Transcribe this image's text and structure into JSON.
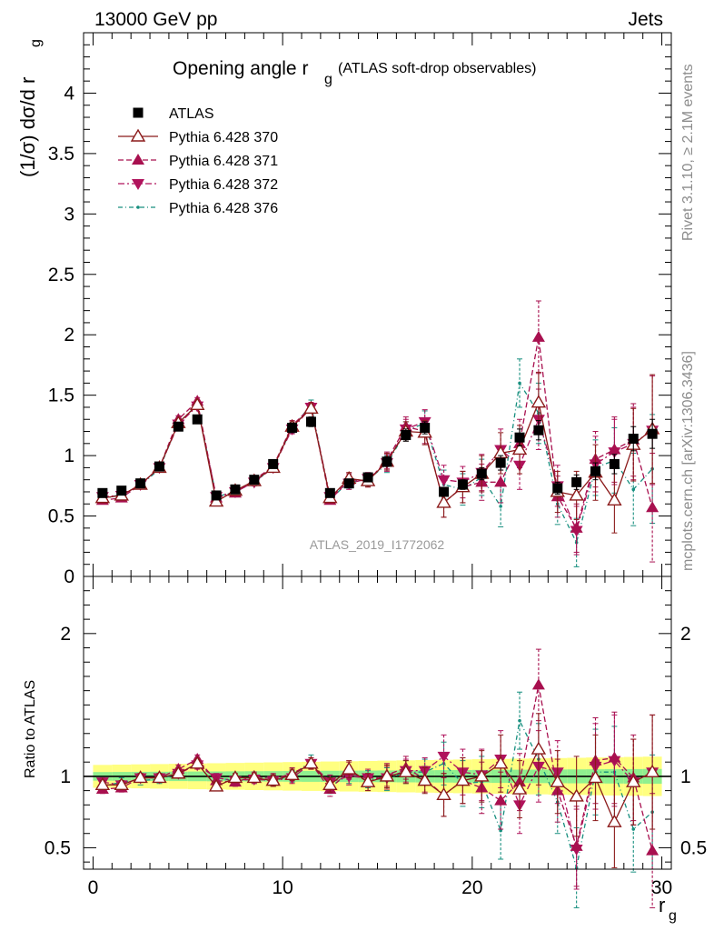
{
  "header": {
    "left": "13000 GeV pp",
    "right": "Jets"
  },
  "plot_title": {
    "main": "Opening angle r",
    "sub_g": "g",
    "paren": "(ATLAS soft-drop observables)"
  },
  "side_text": {
    "rivet": "Rivet 3.1.10, ≥ 2.1M events",
    "mcplots": "mcplots.cern.ch [arXiv:1306.3436]"
  },
  "watermark": "ATLAS_2019_I1772062",
  "upper_ylabel": "(1/σ) dσ/d r",
  "upper_ylabel_sub": "g",
  "lower_ylabel": "Ratio to ATLAS",
  "xlabel": "r",
  "xlabel_sub": "g",
  "colors": {
    "data": "#000000",
    "p370": "#8b1a1a",
    "p371": "#a8104f",
    "p372": "#b0135c",
    "p376": "#178f7f",
    "band_green": "#8ff08f",
    "band_yellow": "#ffff80"
  },
  "chart_data": [
    {
      "type": "line",
      "panel": "main",
      "xlim": [
        -0.5,
        30.5
      ],
      "ylim": [
        0,
        4.5
      ],
      "x_ticks": [
        0,
        10,
        20,
        30
      ],
      "y_ticks": [
        0,
        0.5,
        1,
        1.5,
        2,
        2.5,
        3,
        3.5,
        4
      ],
      "y_tick_labels": [
        "0",
        "0.5",
        "1",
        "1.5",
        "2",
        "2.5",
        "3",
        "3.5",
        "4"
      ],
      "x": [
        0.5,
        1.5,
        2.5,
        3.5,
        4.5,
        5.5,
        6.5,
        7.5,
        8.5,
        9.5,
        10.5,
        11.5,
        12.5,
        13.5,
        14.5,
        15.5,
        16.5,
        17.5,
        18.5,
        19.5,
        20.5,
        21.5,
        22.5,
        23.5,
        24.5,
        25.5,
        26.5,
        27.5,
        28.5,
        29.5
      ],
      "legend": [
        "ATLAS",
        "Pythia 6.428 370",
        "Pythia 6.428 371",
        "Pythia 6.428 372",
        "Pythia 6.428 376"
      ],
      "series": [
        {
          "name": "ATLAS",
          "style": "data",
          "values": [
            0.69,
            0.71,
            0.77,
            0.91,
            1.24,
            1.3,
            0.67,
            0.72,
            0.8,
            0.93,
            1.23,
            1.28,
            0.69,
            0.77,
            0.82,
            0.95,
            1.17,
            1.23,
            0.7,
            0.76,
            0.85,
            0.94,
            1.15,
            1.21,
            0.73,
            0.78,
            0.87,
            0.93,
            1.14,
            1.18
          ]
        },
        {
          "name": "Pythia 6.428 370",
          "style": "solid-open-up",
          "values": [
            0.65,
            0.67,
            0.76,
            0.9,
            1.27,
            1.42,
            0.62,
            0.71,
            0.79,
            0.9,
            1.24,
            1.39,
            0.65,
            0.81,
            0.79,
            0.95,
            1.2,
            1.19,
            0.61,
            0.74,
            0.85,
            1.02,
            1.05,
            1.44,
            0.7,
            0.67,
            0.86,
            0.63,
            1.09,
            1.22
          ]
        },
        {
          "name": "Pythia 6.428 371",
          "style": "dash-filled-up",
          "values": [
            0.63,
            0.65,
            0.76,
            0.9,
            1.3,
            1.45,
            0.65,
            0.69,
            0.8,
            0.91,
            1.25,
            1.4,
            0.63,
            0.8,
            0.79,
            0.96,
            1.24,
            1.2,
            0.61,
            0.74,
            0.78,
            0.78,
            1.1,
            1.98,
            0.66,
            0.4,
            0.97,
            1.05,
            1.13,
            0.57
          ]
        },
        {
          "name": "Pythia 6.428 372",
          "style": "dashdot-filled-down",
          "values": [
            0.66,
            0.67,
            0.76,
            0.9,
            1.26,
            1.41,
            0.66,
            0.7,
            0.78,
            0.9,
            1.22,
            1.4,
            0.66,
            0.77,
            0.81,
            0.94,
            1.22,
            1.28,
            0.8,
            0.78,
            0.86,
            1.05,
            0.92,
            1.3,
            0.75,
            0.38,
            0.93,
            1.03,
            1.1,
            1.21
          ]
        },
        {
          "name": "Pythia 6.428 376",
          "style": "dashdot-dots",
          "values": [
            0.64,
            0.68,
            0.75,
            0.89,
            1.27,
            1.42,
            0.66,
            0.7,
            0.78,
            0.9,
            1.23,
            1.42,
            0.64,
            0.78,
            0.8,
            0.93,
            1.2,
            1.27,
            0.76,
            0.72,
            0.82,
            0.58,
            1.6,
            1.35,
            0.6,
            0.28,
            0.9,
            0.96,
            0.72,
            0.89
          ]
        }
      ],
      "errors": [
        [
          0.02,
          0.02,
          0.02,
          0.03,
          0.03,
          0.03,
          0.02,
          0.02,
          0.03,
          0.03,
          0.04,
          0.04,
          0.02,
          0.03,
          0.03,
          0.04,
          0.05,
          0.05,
          0.03,
          0.04,
          0.05,
          0.06,
          0.07,
          0.08,
          0.05,
          0.06,
          0.07,
          0.08,
          0.1,
          0.12
        ],
        [
          0.02,
          0.02,
          0.02,
          0.02,
          0.03,
          0.03,
          0.02,
          0.02,
          0.03,
          0.03,
          0.04,
          0.04,
          0.03,
          0.05,
          0.05,
          0.07,
          0.08,
          0.1,
          0.12,
          0.13,
          0.15,
          0.17,
          0.2,
          0.25,
          0.17,
          0.2,
          0.23,
          0.27,
          0.3,
          0.45
        ],
        [
          0.02,
          0.02,
          0.02,
          0.02,
          0.03,
          0.03,
          0.02,
          0.02,
          0.03,
          0.03,
          0.04,
          0.04,
          0.03,
          0.05,
          0.05,
          0.07,
          0.08,
          0.1,
          0.12,
          0.13,
          0.15,
          0.17,
          0.2,
          0.3,
          0.17,
          0.2,
          0.23,
          0.27,
          0.3,
          0.45
        ],
        [
          0.02,
          0.02,
          0.02,
          0.02,
          0.03,
          0.03,
          0.02,
          0.02,
          0.03,
          0.03,
          0.04,
          0.04,
          0.03,
          0.05,
          0.05,
          0.07,
          0.08,
          0.1,
          0.12,
          0.13,
          0.15,
          0.17,
          0.2,
          0.25,
          0.17,
          0.2,
          0.23,
          0.27,
          0.3,
          0.45
        ],
        [
          0.02,
          0.02,
          0.02,
          0.02,
          0.03,
          0.03,
          0.02,
          0.02,
          0.03,
          0.03,
          0.04,
          0.04,
          0.03,
          0.05,
          0.05,
          0.07,
          0.08,
          0.1,
          0.12,
          0.13,
          0.15,
          0.17,
          0.2,
          0.25,
          0.17,
          0.2,
          0.23,
          0.27,
          0.3,
          0.45
        ]
      ]
    },
    {
      "type": "line",
      "panel": "ratio",
      "xlim": [
        -0.5,
        30.5
      ],
      "ylim": [
        0.35,
        2.4
      ],
      "x_ticks": [
        0,
        10,
        20,
        30
      ],
      "x_tick_labels": [
        "0",
        "10",
        "20",
        "30"
      ],
      "y_ticks": [
        0.5,
        1,
        2
      ],
      "y_tick_labels": [
        "0.5",
        "1",
        "2"
      ],
      "ylabel": "Ratio to ATLAS",
      "reference": 1,
      "band_inner": 0.03,
      "band_outer": 0.08,
      "series": [
        {
          "name": "Pythia 6.428 370",
          "values": [
            0.94,
            0.94,
            0.99,
            0.99,
            1.02,
            1.09,
            0.93,
            0.99,
            0.99,
            0.97,
            1.01,
            1.09,
            0.94,
            1.05,
            0.96,
            1.0,
            1.03,
            0.97,
            0.87,
            0.97,
            1.0,
            1.09,
            0.91,
            1.19,
            0.96,
            0.86,
            0.99,
            0.68,
            0.96,
            1.03
          ]
        },
        {
          "name": "Pythia 6.428 371",
          "values": [
            0.91,
            0.92,
            0.99,
            0.99,
            1.05,
            1.12,
            0.97,
            0.96,
            1.0,
            0.98,
            1.02,
            1.09,
            0.91,
            1.04,
            0.96,
            1.01,
            1.06,
            0.98,
            0.87,
            0.97,
            0.92,
            0.83,
            0.96,
            1.64,
            0.9,
            0.51,
            1.11,
            1.13,
            0.99,
            0.48
          ]
        },
        {
          "name": "Pythia 6.428 372",
          "values": [
            0.96,
            0.94,
            0.99,
            0.99,
            1.02,
            1.08,
            0.99,
            0.97,
            0.98,
            0.97,
            0.99,
            1.09,
            0.96,
            1.0,
            0.99,
            0.99,
            1.04,
            1.04,
            1.14,
            1.03,
            1.01,
            1.12,
            0.8,
            1.07,
            1.03,
            0.49,
            1.07,
            1.11,
            0.96,
            1.03
          ]
        },
        {
          "name": "Pythia 6.428 376",
          "values": [
            0.93,
            0.96,
            0.97,
            0.98,
            1.02,
            1.09,
            0.99,
            0.97,
            0.98,
            0.97,
            1.0,
            1.11,
            0.93,
            1.01,
            0.98,
            0.98,
            1.03,
            1.03,
            1.09,
            0.95,
            0.96,
            0.62,
            1.39,
            1.12,
            0.82,
            0.36,
            1.03,
            1.03,
            0.63,
            0.75
          ]
        }
      ],
      "errors": [
        0.03,
        0.03,
        0.03,
        0.03,
        0.03,
        0.03,
        0.03,
        0.03,
        0.03,
        0.04,
        0.04,
        0.04,
        0.05,
        0.06,
        0.06,
        0.08,
        0.08,
        0.09,
        0.15,
        0.16,
        0.18,
        0.2,
        0.2,
        0.25,
        0.22,
        0.28,
        0.3,
        0.32,
        0.3,
        0.4
      ]
    }
  ]
}
